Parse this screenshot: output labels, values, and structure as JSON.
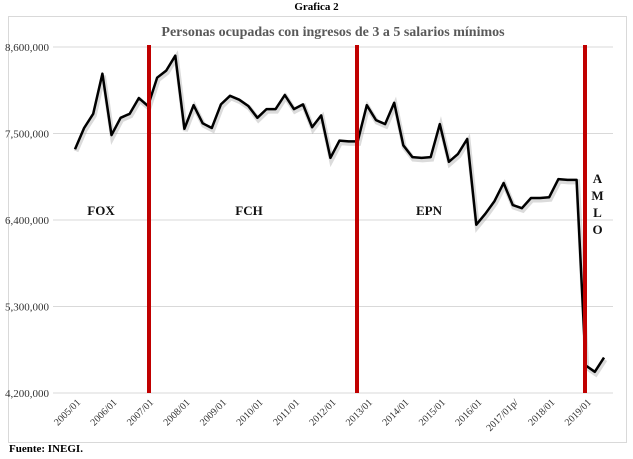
{
  "figure_title": "Grafica 2",
  "source": "Fuente: INEGI.",
  "chart_data": {
    "type": "line",
    "title": "Personas ocupadas con ingresos de 3 a 5 salarios mínimos",
    "xlabel": "",
    "ylabel": "",
    "ylim": [
      4200000,
      8600000
    ],
    "yticks": [
      "4,200,000",
      "5,300,000",
      "6,400,000",
      "7,500,000",
      "8,600,000"
    ],
    "ytick_values": [
      4200000,
      5300000,
      6400000,
      7500000,
      8600000
    ],
    "xtick_labels": [
      "2005/01",
      "2006/01",
      "2007/01",
      "2008/01",
      "2009/01",
      "2010/01",
      "2011/01",
      "2012/01",
      "2013/01",
      "2014/01",
      "2015/01",
      "2016/01",
      "2017/01p/",
      "2018/01",
      "2019/01"
    ],
    "grid": "horizontal",
    "series": [
      {
        "color": "#000000",
        "x": [
          "2005/01",
          "2005/02",
          "2005/03",
          "2005/04",
          "2006/01",
          "2006/02",
          "2006/03",
          "2006/04",
          "2007/01",
          "2007/02",
          "2007/03",
          "2007/04",
          "2008/01",
          "2008/02",
          "2008/03",
          "2008/04",
          "2009/01",
          "2009/02",
          "2009/03",
          "2009/04",
          "2010/01",
          "2010/02",
          "2010/03",
          "2010/04",
          "2011/01",
          "2011/02",
          "2011/03",
          "2011/04",
          "2012/01",
          "2012/02",
          "2012/03",
          "2012/04",
          "2013/01",
          "2013/02",
          "2013/03",
          "2013/04",
          "2014/01",
          "2014/02",
          "2014/03",
          "2014/04",
          "2015/01",
          "2015/02",
          "2015/03",
          "2015/04",
          "2016/01",
          "2016/02",
          "2016/03",
          "2016/04",
          "2017/01",
          "2017/02",
          "2017/03",
          "2017/04",
          "2018/01",
          "2018/02",
          "2018/03",
          "2018/04",
          "2019/01",
          "2019/02",
          "2019/03"
        ],
        "values": [
          7300000,
          7570000,
          7750000,
          8260000,
          7480000,
          7700000,
          7750000,
          7950000,
          7850000,
          8210000,
          8300000,
          8490000,
          7560000,
          7860000,
          7630000,
          7570000,
          7870000,
          7980000,
          7930000,
          7850000,
          7700000,
          7810000,
          7810000,
          7990000,
          7810000,
          7870000,
          7580000,
          7730000,
          7190000,
          7410000,
          7400000,
          7400000,
          7860000,
          7670000,
          7620000,
          7890000,
          7350000,
          7200000,
          7190000,
          7200000,
          7620000,
          7140000,
          7240000,
          7430000,
          6340000,
          6480000,
          6640000,
          6870000,
          6590000,
          6550000,
          6680000,
          6680000,
          6690000,
          6920000,
          6910000,
          6910000,
          4550000,
          4470000,
          4650000
        ]
      }
    ],
    "period_markers": [
      {
        "label": "FOX",
        "line_color": "#c00000"
      },
      {
        "label": "FCH",
        "line_color": "#c00000"
      },
      {
        "label": "EPN",
        "line_color": "#c00000"
      },
      {
        "label": "AMLO",
        "line_color": "#c00000"
      }
    ]
  }
}
